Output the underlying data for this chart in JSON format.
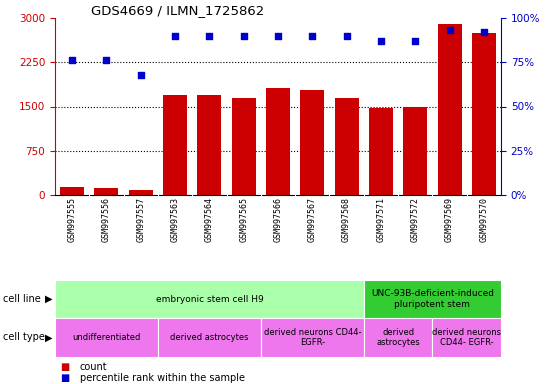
{
  "title": "GDS4669 / ILMN_1725862",
  "samples": [
    "GSM997555",
    "GSM997556",
    "GSM997557",
    "GSM997563",
    "GSM997564",
    "GSM997565",
    "GSM997566",
    "GSM997567",
    "GSM997568",
    "GSM997571",
    "GSM997572",
    "GSM997569",
    "GSM997570"
  ],
  "counts": [
    130,
    120,
    90,
    1700,
    1700,
    1650,
    1820,
    1780,
    1650,
    1480,
    1490,
    2900,
    2750
  ],
  "percentile": [
    76,
    76,
    68,
    90,
    90,
    90,
    90,
    90,
    90,
    87,
    87,
    93,
    92
  ],
  "ylim_left": [
    0,
    3000
  ],
  "ylim_right": [
    0,
    100
  ],
  "yticks_left": [
    0,
    750,
    1500,
    2250,
    3000
  ],
  "yticks_right": [
    0,
    25,
    50,
    75,
    100
  ],
  "bar_color": "#cc0000",
  "dot_color": "#0000cc",
  "xtick_bg_color": "#cccccc",
  "cell_line_groups": [
    {
      "label": "embryonic stem cell H9",
      "start": 0,
      "end": 9,
      "color": "#aaffaa"
    },
    {
      "label": "UNC-93B-deficient-induced\npluripotent stem",
      "start": 9,
      "end": 13,
      "color": "#33cc33"
    }
  ],
  "cell_type_groups": [
    {
      "label": "undifferentiated",
      "start": 0,
      "end": 3,
      "color": "#ee77ee"
    },
    {
      "label": "derived astrocytes",
      "start": 3,
      "end": 6,
      "color": "#ee77ee"
    },
    {
      "label": "derived neurons CD44-\nEGFR-",
      "start": 6,
      "end": 9,
      "color": "#ee77ee"
    },
    {
      "label": "derived\nastrocytes",
      "start": 9,
      "end": 11,
      "color": "#ee77ee"
    },
    {
      "label": "derived neurons\nCD44- EGFR-",
      "start": 11,
      "end": 13,
      "color": "#ee77ee"
    }
  ],
  "legend_count_color": "#cc0000",
  "legend_pct_color": "#0000cc"
}
